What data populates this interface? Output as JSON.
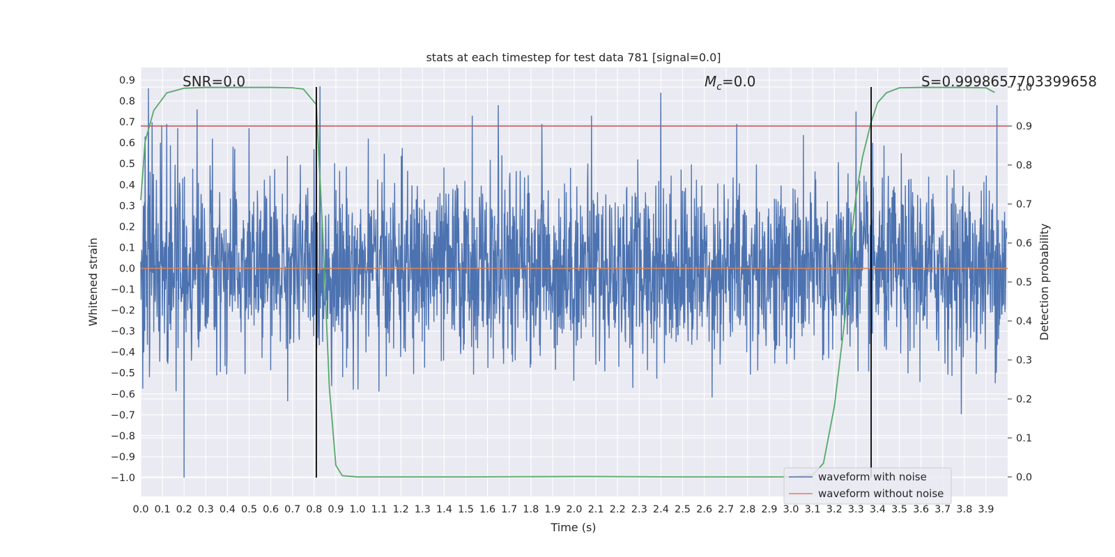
{
  "chart_data": {
    "type": "line",
    "title": "stats at each timestep for test data 781 [signal=0.0]",
    "xlabel": "Time (s)",
    "ylabel": "Whitened strain",
    "y2label": "Detection probability",
    "xlim": [
      0.0,
      4.0
    ],
    "ylim": [
      -1.09,
      0.96
    ],
    "y2lim": [
      -0.05,
      1.05
    ],
    "x_ticks": [
      0.0,
      0.1,
      0.2,
      0.3,
      0.4,
      0.5,
      0.6,
      0.7,
      0.8,
      0.9,
      1.0,
      1.1,
      1.2,
      1.3,
      1.4,
      1.5,
      1.6,
      1.7,
      1.8,
      1.9,
      2.0,
      2.1,
      2.2,
      2.3,
      2.4,
      2.5,
      2.6,
      2.7,
      2.8,
      2.9,
      3.0,
      3.1,
      3.2,
      3.3,
      3.4,
      3.5,
      3.6,
      3.7,
      3.8,
      3.9
    ],
    "y_ticks": [
      0.9,
      0.8,
      0.7,
      0.6,
      0.5,
      0.4,
      0.3,
      0.2,
      0.1,
      0.0,
      -0.1,
      -0.2,
      -0.3,
      -0.4,
      -0.5,
      -0.6,
      -0.7,
      -0.8,
      -0.9,
      -1.0
    ],
    "y2_ticks": [
      1.0,
      0.9,
      0.8,
      0.7,
      0.6,
      0.5,
      0.4,
      0.3,
      0.2,
      0.1,
      0.0
    ],
    "annotations": {
      "snr": "SNR=0.0",
      "mc_symbol": "M",
      "mc_sub": "c",
      "mc_value": "=0.0",
      "s": "S=0.9998657703399658"
    },
    "threshold_line": {
      "axis": "y2",
      "value": 0.9,
      "color": "#c44e52"
    },
    "vertical_lines": [
      0.81,
      3.37
    ],
    "series": [
      {
        "name": "waveform with noise",
        "color": "#4c72b0",
        "axis": "y",
        "description_peaks": {
          "x": [
            0.02,
            0.035,
            0.09,
            0.12,
            0.17,
            0.2,
            0.26,
            0.33,
            0.5,
            0.8,
            1.05,
            1.53,
            1.65,
            1.85,
            2.08,
            2.4,
            2.75,
            3.3,
            3.95
          ],
          "y": [
            0.63,
            0.86,
            0.6,
            0.69,
            0.67,
            -1.0,
            0.76,
            0.62,
            0.67,
            0.57,
            0.62,
            0.73,
            0.78,
            0.69,
            0.73,
            0.84,
            0.69,
            0.75,
            0.78
          ]
        }
      },
      {
        "name": "waveform without noise",
        "color": "#dd8452",
        "axis": "y",
        "x": [
          0.0,
          4.0
        ],
        "y": [
          0.0,
          0.0
        ]
      },
      {
        "name": "detection probability",
        "color": "#55a868",
        "axis": "y2",
        "x": [
          0.0,
          0.02,
          0.06,
          0.12,
          0.2,
          0.3,
          0.4,
          0.5,
          0.6,
          0.7,
          0.75,
          0.81,
          0.84,
          0.87,
          0.9,
          0.93,
          1.0,
          1.5,
          2.0,
          2.1,
          2.5,
          3.0,
          3.1,
          3.15,
          3.2,
          3.25,
          3.28,
          3.3,
          3.33,
          3.37,
          3.4,
          3.44,
          3.5,
          3.6,
          3.8,
          3.9,
          3.94
        ],
        "y": [
          0.71,
          0.86,
          0.94,
          0.985,
          0.997,
          0.999,
          0.999,
          0.999,
          0.999,
          0.998,
          0.995,
          0.955,
          0.62,
          0.23,
          0.03,
          0.003,
          0.0,
          0.0,
          0.001,
          0.001,
          0.0,
          0.0,
          0.005,
          0.035,
          0.18,
          0.41,
          0.62,
          0.72,
          0.82,
          0.91,
          0.96,
          0.985,
          0.998,
          0.999,
          0.999,
          0.998,
          0.986
        ]
      }
    ],
    "legend": {
      "placement": "lower-right",
      "entries": [
        {
          "label": "waveform with noise",
          "color": "#4c72b0"
        },
        {
          "label": "waveform without noise",
          "color": "#dd8452"
        }
      ]
    },
    "background": "#eaeaf2",
    "grid": true
  }
}
